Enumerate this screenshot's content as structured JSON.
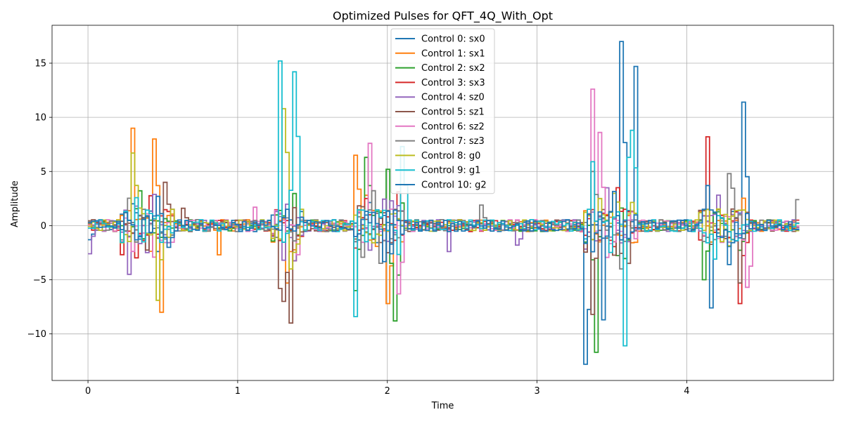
{
  "chart_data": {
    "type": "line",
    "step": true,
    "title": "Optimized Pulses for QFT_4Q_With_Opt",
    "xlabel": "Time",
    "ylabel": "Amplitude",
    "xlim": [
      -0.24,
      4.98
    ],
    "ylim": [
      -14.3,
      18.5
    ],
    "xticks": [
      0,
      1,
      2,
      3,
      4
    ],
    "yticks": [
      -10,
      -5,
      0,
      5,
      10,
      15
    ],
    "xtick_labels": [
      "0",
      "1",
      "2",
      "3",
      "4"
    ],
    "ytick_labels": [
      "−10",
      "−5",
      "0",
      "5",
      "10",
      "15"
    ],
    "grid": true,
    "legend_position": "top-center",
    "bursts": [
      {
        "start": 0.2,
        "end": 0.57
      },
      {
        "start": 1.22,
        "end": 1.42
      },
      {
        "start": 1.76,
        "end": 2.1
      },
      {
        "start": 3.3,
        "end": 3.66
      },
      {
        "start": 4.08,
        "end": 4.4
      }
    ],
    "series": [
      {
        "name": "Control 0: sx0",
        "color": "#1f77b4",
        "peaks": [
          {
            "t": 3.55,
            "v": 17.0
          },
          {
            "t": 3.65,
            "v": 14.7
          },
          {
            "t": 3.32,
            "v": -12.8
          },
          {
            "t": 4.37,
            "v": 11.4
          },
          {
            "t": 4.16,
            "v": -7.6
          },
          {
            "t": 0.0,
            "v": -1.3
          }
        ]
      },
      {
        "name": "Control 1: sx1",
        "color": "#ff7f0e",
        "peaks": [
          {
            "t": 0.28,
            "v": 9.0
          },
          {
            "t": 0.43,
            "v": 8.0
          },
          {
            "t": 0.47,
            "v": -8.0
          },
          {
            "t": 1.77,
            "v": 6.5
          },
          {
            "t": 1.99,
            "v": -7.2
          },
          {
            "t": 1.33,
            "v": -5.3
          },
          {
            "t": 0.86,
            "v": -2.7
          }
        ]
      },
      {
        "name": "Control 2: sx2",
        "color": "#2ca02c",
        "peaks": [
          {
            "t": 1.84,
            "v": 6.3
          },
          {
            "t": 2.0,
            "v": 5.2
          },
          {
            "t": 2.05,
            "v": -8.8
          },
          {
            "t": 3.38,
            "v": -11.7
          },
          {
            "t": 4.1,
            "v": -5.0
          },
          {
            "t": 1.78,
            "v": -6.0
          }
        ]
      },
      {
        "name": "Control 3: sx3",
        "color": "#d62728",
        "peaks": [
          {
            "t": 4.12,
            "v": 8.2
          },
          {
            "t": 4.36,
            "v": 7.3
          },
          {
            "t": 4.35,
            "v": -7.2
          },
          {
            "t": 3.52,
            "v": 3.5
          },
          {
            "t": 1.85,
            "v": 2.5
          }
        ]
      },
      {
        "name": "Control 4: sz0",
        "color": "#9467bd",
        "peaks": [
          {
            "t": 0.0,
            "v": -2.6
          },
          {
            "t": 0.27,
            "v": -4.5
          },
          {
            "t": 0.31,
            "v": 1.8
          },
          {
            "t": 2.4,
            "v": -2.4
          },
          {
            "t": 2.86,
            "v": -1.8
          }
        ]
      },
      {
        "name": "Control 5: sz1",
        "color": "#8c564b",
        "peaks": [
          {
            "t": 1.34,
            "v": -9.0
          },
          {
            "t": 1.3,
            "v": -7.0
          },
          {
            "t": 3.35,
            "v": -8.2
          },
          {
            "t": 4.35,
            "v": -5.3
          },
          {
            "t": 0.5,
            "v": 4.0
          },
          {
            "t": 0.63,
            "v": 1.6
          },
          {
            "t": 1.27,
            "v": -5.8
          }
        ]
      },
      {
        "name": "Control 6: sz2",
        "color": "#e377c2",
        "peaks": [
          {
            "t": 3.37,
            "v": 12.6
          },
          {
            "t": 3.41,
            "v": 8.6
          },
          {
            "t": 1.87,
            "v": 7.6
          },
          {
            "t": 2.07,
            "v": -6.3
          },
          {
            "t": 4.38,
            "v": -5.7
          },
          {
            "t": 1.1,
            "v": 1.7
          }
        ]
      },
      {
        "name": "Control 7: sz3",
        "color": "#7f7f7f",
        "peaks": [
          {
            "t": 4.26,
            "v": 4.8
          },
          {
            "t": 3.37,
            "v": 5.0
          },
          {
            "t": 4.72,
            "v": 2.4
          },
          {
            "t": 2.62,
            "v": 1.9
          },
          {
            "t": 3.54,
            "v": -4.0
          }
        ]
      },
      {
        "name": "Control 8: g0",
        "color": "#bcbd22",
        "peaks": [
          {
            "t": 1.3,
            "v": 10.8
          },
          {
            "t": 0.31,
            "v": -7.8
          },
          {
            "t": 0.45,
            "v": -6.9
          },
          {
            "t": 0.28,
            "v": 6.7
          },
          {
            "t": 1.35,
            "v": -4.0
          }
        ]
      },
      {
        "name": "Control 9: g1",
        "color": "#17becf",
        "peaks": [
          {
            "t": 1.26,
            "v": 15.2
          },
          {
            "t": 1.36,
            "v": 14.2
          },
          {
            "t": 1.77,
            "v": -8.4
          },
          {
            "t": 3.57,
            "v": -11.1
          },
          {
            "t": 3.62,
            "v": -10.9
          },
          {
            "t": 3.63,
            "v": 8.8
          },
          {
            "t": 3.59,
            "v": 6.3
          },
          {
            "t": 2.09,
            "v": 7.3
          },
          {
            "t": 3.35,
            "v": 5.9
          }
        ]
      },
      {
        "name": "Control 10: g2",
        "color": "#1f77b4",
        "peaks": [
          {
            "t": 3.44,
            "v": -8.7
          },
          {
            "t": 4.12,
            "v": 3.7
          },
          {
            "t": 4.26,
            "v": -3.6
          },
          {
            "t": 0.25,
            "v": 1.2
          }
        ]
      }
    ]
  }
}
